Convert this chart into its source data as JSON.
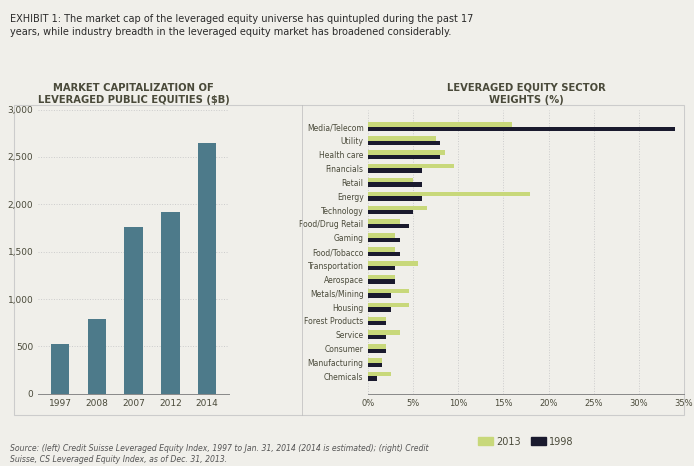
{
  "title_text": "EXHIBIT 1: The market cap of the leveraged equity universe has quintupled during the past 17\nyears, while industry breadth in the leveraged equity market has broadened considerably.",
  "source_text": "Source: (left) Credit Suisse Leveraged Equity Index, 1997 to Jan. 31, 2014 (2014 is estimated); (right) Credit\nSuisse, CS Leveraged Equity Index, as of Dec. 31, 2013.",
  "bar_title": "MARKET CAPITALIZATION OF\nLEVERAGED PUBLIC EQUITIES ($B)",
  "bar_categories": [
    "1997",
    "2008",
    "2007",
    "2012",
    "2014"
  ],
  "bar_values": [
    520,
    790,
    1760,
    1920,
    2650
  ],
  "bar_color": "#4d7a8a",
  "sector_title": "LEVERAGED EQUITY SECTOR\nWEIGHTS (%)",
  "sectors": [
    "Media/Telecom",
    "Utility",
    "Health care",
    "Financials",
    "Retail",
    "Energy",
    "Technology",
    "Food/Drug Retail",
    "Gaming",
    "Food/Tobacco",
    "Transportation",
    "Aerospace",
    "Metals/Mining",
    "Housing",
    "Forest Products",
    "Service",
    "Consumer",
    "Manufacturing",
    "Chemicals"
  ],
  "values_2013": [
    16,
    7.5,
    8.5,
    9.5,
    5,
    18,
    6.5,
    3.5,
    3,
    3,
    5.5,
    3,
    4.5,
    4.5,
    2,
    3.5,
    2,
    1.5,
    2.5
  ],
  "values_1998": [
    34,
    8,
    8,
    6,
    6,
    6,
    5,
    4.5,
    3.5,
    3.5,
    3,
    3,
    2.5,
    2.5,
    2,
    2,
    2,
    1.5,
    1
  ],
  "color_2013": "#c8d87a",
  "color_1998": "#1a1a2e",
  "background_color": "#f0efea",
  "panel_background": "#f0efea",
  "grid_color": "#cccccc",
  "title_color": "#2a2a2a",
  "axis_label_color": "#4a4a3a",
  "ylim_bar": [
    0,
    3000
  ],
  "xlim_sector": [
    0,
    35
  ]
}
